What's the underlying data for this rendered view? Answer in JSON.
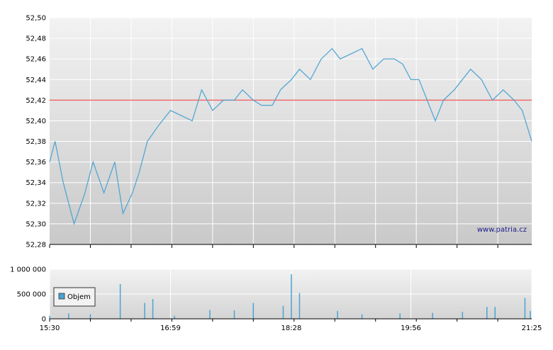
{
  "chart_data": [
    {
      "type": "line",
      "title": "",
      "xlabel": "",
      "ylabel": "",
      "ylim": [
        52.28,
        52.5
      ],
      "y_ticks": [
        "52,28",
        "52,30",
        "52,32",
        "52,34",
        "52,36",
        "52,38",
        "52,40",
        "52,42",
        "52,44",
        "52,46",
        "52,48",
        "52,50"
      ],
      "x_ticks": [
        "15:30",
        "16:59",
        "18:28",
        "19:56",
        "21:25"
      ],
      "xlim": [
        "15:30",
        "21:25"
      ],
      "grid": true,
      "reference_line": {
        "value": 52.42,
        "color": "#ef6b6b"
      },
      "watermark": "www.patria.cz",
      "series": [
        {
          "color": "#4aa3d3",
          "x": [
            "15:30",
            "15:34",
            "15:40",
            "15:48",
            "15:56",
            "16:02",
            "16:10",
            "16:18",
            "16:24",
            "16:31",
            "16:36",
            "16:42",
            "16:50",
            "16:59",
            "17:07",
            "17:15",
            "17:22",
            "17:30",
            "17:38",
            "17:46",
            "17:52",
            "18:00",
            "18:06",
            "18:14",
            "18:20",
            "18:28",
            "18:34",
            "18:42",
            "18:50",
            "18:58",
            "19:04",
            "19:12",
            "19:20",
            "19:28",
            "19:36",
            "19:44",
            "19:50",
            "19:56",
            "20:02",
            "20:08",
            "20:14",
            "20:20",
            "20:28",
            "20:34",
            "20:40",
            "20:48",
            "20:56",
            "21:04",
            "21:12",
            "21:18",
            "21:25"
          ],
          "values": [
            52.36,
            52.38,
            52.34,
            52.3,
            52.33,
            52.36,
            52.33,
            52.36,
            52.31,
            52.33,
            52.35,
            52.38,
            52.395,
            52.41,
            52.405,
            52.4,
            52.43,
            52.41,
            52.42,
            52.42,
            52.43,
            52.42,
            52.415,
            52.415,
            52.43,
            52.44,
            52.45,
            52.44,
            52.46,
            52.47,
            52.46,
            52.465,
            52.47,
            52.45,
            52.46,
            52.46,
            52.455,
            52.44,
            52.44,
            52.42,
            52.4,
            52.42,
            52.43,
            52.44,
            52.45,
            52.44,
            52.42,
            52.43,
            52.42,
            52.41,
            52.38
          ]
        }
      ]
    },
    {
      "type": "bar",
      "title": "",
      "ylim": [
        0,
        1000000
      ],
      "y_ticks": [
        "0",
        "500 000",
        "1 000 000"
      ],
      "x_ticks": [
        "15:30",
        "16:59",
        "18:28",
        "19:56",
        "21:25"
      ],
      "xlim": [
        "15:30",
        "21:25"
      ],
      "grid": true,
      "legend": {
        "label": "Objem",
        "placement": "left"
      },
      "series": [
        {
          "name": "Objem",
          "color": "#4aa3d3",
          "x": [
            "15:30",
            "15:44",
            "16:00",
            "16:22",
            "16:40",
            "16:46",
            "17:02",
            "17:28",
            "17:46",
            "18:00",
            "18:22",
            "18:28",
            "18:34",
            "19:02",
            "19:20",
            "19:48",
            "20:12",
            "20:34",
            "20:52",
            "20:58",
            "21:20",
            "21:24"
          ],
          "values": [
            60000,
            110000,
            90000,
            700000,
            320000,
            400000,
            60000,
            180000,
            170000,
            320000,
            260000,
            900000,
            520000,
            160000,
            90000,
            110000,
            120000,
            140000,
            240000,
            240000,
            420000,
            160000
          ]
        }
      ]
    }
  ]
}
